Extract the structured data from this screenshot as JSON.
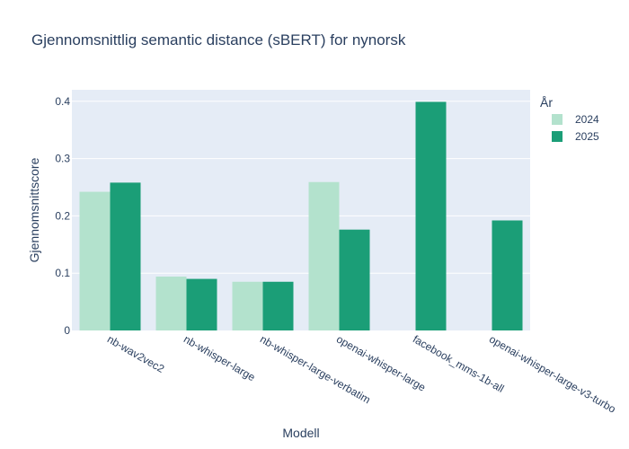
{
  "chart_data": {
    "type": "bar",
    "title": "Gjennomsnittlig semantic distance (sBERT) for nynorsk",
    "xlabel": "Modell",
    "ylabel": "Gjennomsnittscore",
    "categories": [
      "nb-wav2vec2",
      "nb-whisper-large",
      "nb-whisper-large-verbatim",
      "openai-whisper-large",
      "facebook_mms-1b-all",
      "openai-whisper-large-v3-turbo"
    ],
    "series": [
      {
        "name": "2024",
        "color": "#b3e2cd",
        "values": [
          0.242,
          0.094,
          0.085,
          0.259,
          null,
          null
        ]
      },
      {
        "name": "2025",
        "color": "#1b9e77",
        "values": [
          0.258,
          0.09,
          0.085,
          0.176,
          0.399,
          0.192
        ]
      }
    ],
    "yticks": [
      0,
      0.1,
      0.2,
      0.3,
      0.4
    ],
    "ytick_labels": [
      "0",
      "0.1",
      "0.2",
      "0.3",
      "0.4"
    ],
    "ylim": [
      0,
      0.42
    ],
    "legend": {
      "title": "År",
      "placement": "top-right"
    },
    "grid": true,
    "plot_bg": "#e5ecf6"
  }
}
